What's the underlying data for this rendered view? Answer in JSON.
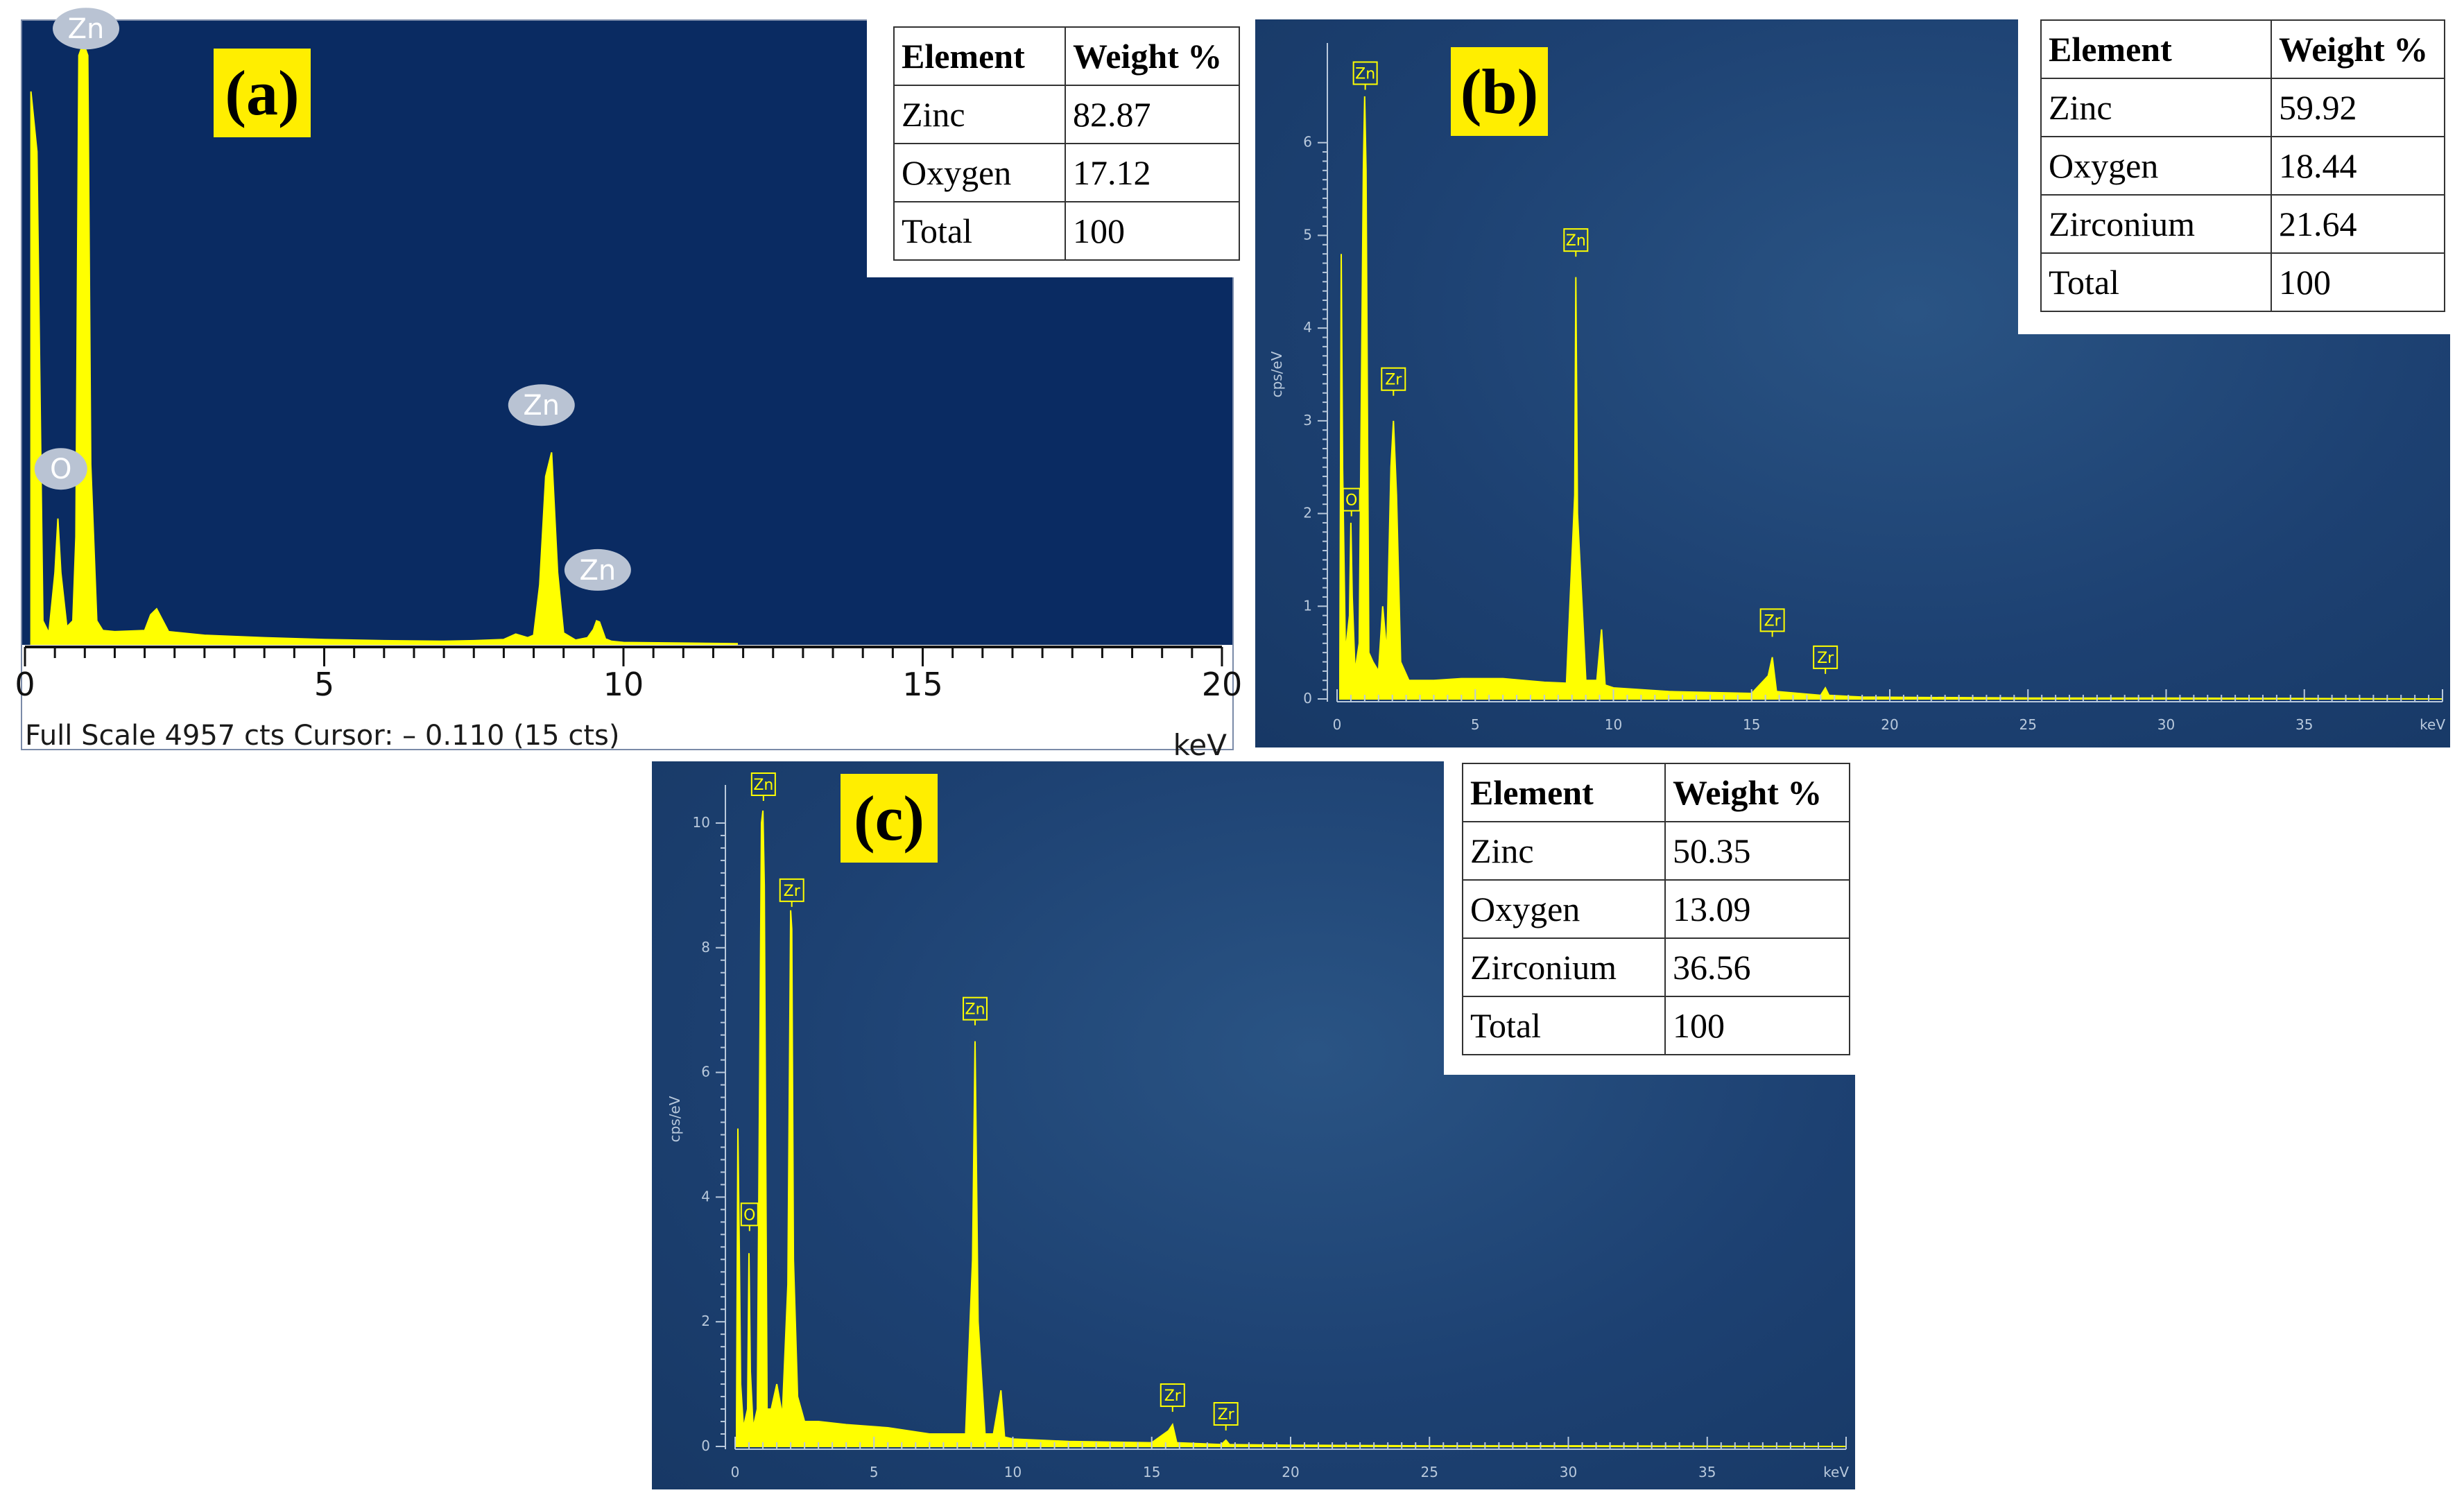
{
  "panels": {
    "a": {
      "label": "(a)",
      "footer": "Full Scale 4957 cts Cursor: – 0.110 (15 cts)",
      "unit": "keV",
      "table": {
        "headers": [
          "Element",
          "Weight %"
        ],
        "rows": [
          [
            "Zinc",
            "82.87"
          ],
          [
            "Oxygen",
            "17.12"
          ],
          [
            "Total",
            "100"
          ]
        ]
      }
    },
    "b": {
      "label": "(b)",
      "table": {
        "headers": [
          "Element",
          "Weight %"
        ],
        "rows": [
          [
            "Zinc",
            "59.92"
          ],
          [
            "Oxygen",
            "18.44"
          ],
          [
            "Zirconium",
            "21.64"
          ],
          [
            "Total",
            "100"
          ]
        ]
      }
    },
    "c": {
      "label": "(c)",
      "table": {
        "headers": [
          "Element",
          "Weight %"
        ],
        "rows": [
          [
            "Zinc",
            "50.35"
          ],
          [
            "Oxygen",
            "13.09"
          ],
          [
            "Zirconium",
            "36.56"
          ],
          [
            "Total",
            "100"
          ]
        ]
      }
    }
  },
  "chart_data": [
    {
      "panel": "a",
      "type": "line",
      "xlabel": "keV",
      "ylabel": "",
      "xlim": [
        0,
        20
      ],
      "ylim": [
        0,
        4957
      ],
      "xticks": [
        0,
        5,
        10,
        15,
        20
      ],
      "xtick_labels": [
        "0",
        "5",
        "10",
        "15",
        "20"
      ],
      "yticks": [],
      "ytick_labels": [],
      "colors": {
        "fill": "#ffff00",
        "background": "#0a2b62",
        "badge": "#b9c3d3",
        "badge_text": "#ffffff"
      },
      "series": [
        {
          "x": [
            0.1,
            0.2,
            0.3,
            0.4,
            0.5,
            0.55,
            0.6,
            0.7,
            0.8,
            0.85,
            0.9,
            0.95,
            1.0,
            1.05,
            1.1,
            1.2,
            1.3,
            1.5,
            2.0,
            2.1,
            2.2,
            2.4,
            3.0,
            4.0,
            5.0,
            6.0,
            7.0,
            7.5,
            8.0,
            8.2,
            8.4,
            8.5,
            8.6,
            8.7,
            8.8,
            8.9,
            9.0,
            9.2,
            9.4,
            9.5,
            9.55,
            9.6,
            9.65,
            9.7,
            9.8,
            10.0,
            11.0,
            11.9
          ],
          "y": [
            4600,
            4100,
            200,
            100,
            600,
            1050,
            600,
            150,
            200,
            900,
            4900,
            4970,
            4970,
            4900,
            1500,
            200,
            120,
            110,
            120,
            250,
            300,
            110,
            80,
            60,
            45,
            35,
            30,
            35,
            45,
            90,
            60,
            80,
            500,
            1400,
            1600,
            600,
            100,
            40,
            60,
            130,
            200,
            190,
            120,
            50,
            30,
            20,
            15,
            10
          ]
        }
      ],
      "annotations": [
        {
          "text": "Zn",
          "x": 1.02,
          "y": 4950
        },
        {
          "text": "O",
          "x": 0.6,
          "y": 1290
        },
        {
          "text": "Zn",
          "x": 8.63,
          "y": 1820
        },
        {
          "text": "Zn",
          "x": 9.57,
          "y": 450
        }
      ]
    },
    {
      "panel": "b",
      "type": "line",
      "xlabel": "keV",
      "ylabel": "cps/eV",
      "xlim": [
        0,
        40
      ],
      "ylim": [
        0,
        7
      ],
      "xticks": [
        0,
        5,
        10,
        15,
        20,
        25,
        30,
        35
      ],
      "xtick_labels": [
        "0",
        "5",
        "10",
        "15",
        "20",
        "25",
        "30",
        "35"
      ],
      "yticks": [
        0,
        1,
        2,
        3,
        4,
        5,
        6
      ],
      "ytick_labels": [
        "0",
        "1",
        "2",
        "3",
        "4",
        "5",
        "6"
      ],
      "colors": {
        "fill": "#ffff00",
        "label_box": "#ffff00"
      },
      "series": [
        {
          "x": [
            0.1,
            0.15,
            0.2,
            0.3,
            0.45,
            0.5,
            0.55,
            0.65,
            0.8,
            0.95,
            1.0,
            1.05,
            1.15,
            1.3,
            1.5,
            1.65,
            1.8,
            1.95,
            2.04,
            2.15,
            2.3,
            2.6,
            3.5,
            4.5,
            6.0,
            7.5,
            8.3,
            8.6,
            8.64,
            8.7,
            9.0,
            9.4,
            9.57,
            9.7,
            10.0,
            12.0,
            15.0,
            15.6,
            15.75,
            15.9,
            17.5,
            17.67,
            17.8,
            19.0,
            25.0,
            30.0,
            40.0
          ],
          "y": [
            0.3,
            4.8,
            2.5,
            0.5,
            0.9,
            1.9,
            1.1,
            0.3,
            0.6,
            5.7,
            6.5,
            5.7,
            0.5,
            0.4,
            0.3,
            1.0,
            0.5,
            2.5,
            3.0,
            2.2,
            0.4,
            0.2,
            0.2,
            0.22,
            0.22,
            0.18,
            0.17,
            2.2,
            4.55,
            2.0,
            0.2,
            0.2,
            0.75,
            0.15,
            0.12,
            0.08,
            0.06,
            0.25,
            0.45,
            0.08,
            0.04,
            0.12,
            0.04,
            0.02,
            0.01,
            0.01,
            0.0
          ]
        }
      ],
      "annotations": [
        {
          "text": "Zn",
          "x": 1.02,
          "y": 6.6
        },
        {
          "text": "Zr",
          "x": 2.04,
          "y": 3.3
        },
        {
          "text": "O",
          "x": 0.52,
          "y": 2.0
        },
        {
          "text": "Zn",
          "x": 8.64,
          "y": 4.8
        },
        {
          "text": "Zr",
          "x": 15.75,
          "y": 0.7
        },
        {
          "text": "Zr",
          "x": 17.67,
          "y": 0.3
        }
      ]
    },
    {
      "panel": "c",
      "type": "line",
      "xlabel": "keV",
      "ylabel": "cps/eV",
      "xlim": [
        0,
        40
      ],
      "ylim": [
        0,
        10.5
      ],
      "xticks": [
        0,
        5,
        10,
        15,
        20,
        25,
        30,
        35
      ],
      "xtick_labels": [
        "0",
        "5",
        "10",
        "15",
        "20",
        "25",
        "30",
        "35"
      ],
      "yticks": [
        0,
        2,
        4,
        6,
        8,
        10
      ],
      "ytick_labels": [
        "0",
        "2",
        "4",
        "6",
        "8",
        "10"
      ],
      "colors": {
        "fill": "#ffff00",
        "label_box": "#ffff00"
      },
      "series": [
        {
          "x": [
            0.05,
            0.1,
            0.15,
            0.2,
            0.3,
            0.45,
            0.5,
            0.55,
            0.65,
            0.8,
            0.95,
            1.0,
            1.05,
            1.15,
            1.3,
            1.5,
            1.7,
            1.9,
            2.0,
            2.04,
            2.1,
            2.25,
            2.5,
            3.0,
            4.0,
            5.5,
            7.0,
            8.3,
            8.55,
            8.64,
            8.75,
            9.0,
            9.3,
            9.57,
            9.7,
            10.0,
            12.0,
            15.0,
            15.6,
            15.75,
            15.9,
            17.5,
            17.67,
            17.8,
            20.0,
            25.0,
            30.0,
            40.0
          ],
          "y": [
            0.3,
            5.1,
            3.2,
            1.0,
            0.3,
            0.6,
            3.1,
            1.2,
            0.3,
            0.6,
            10.0,
            10.2,
            9.0,
            0.6,
            0.6,
            1.0,
            0.5,
            2.6,
            8.6,
            8.3,
            3.0,
            0.8,
            0.4,
            0.4,
            0.35,
            0.3,
            0.2,
            0.2,
            3.0,
            6.5,
            2.0,
            0.2,
            0.2,
            0.9,
            0.15,
            0.12,
            0.08,
            0.06,
            0.25,
            0.35,
            0.06,
            0.03,
            0.1,
            0.03,
            0.02,
            0.01,
            0.01,
            0.0
          ]
        }
      ],
      "annotations": [
        {
          "text": "Zn",
          "x": 1.02,
          "y": 10.4
        },
        {
          "text": "Zr",
          "x": 2.04,
          "y": 8.7
        },
        {
          "text": "O",
          "x": 0.52,
          "y": 3.5
        },
        {
          "text": "Zn",
          "x": 8.64,
          "y": 6.8
        },
        {
          "text": "Zr",
          "x": 15.75,
          "y": 0.6
        },
        {
          "text": "Zr",
          "x": 17.67,
          "y": 0.3
        }
      ]
    }
  ]
}
